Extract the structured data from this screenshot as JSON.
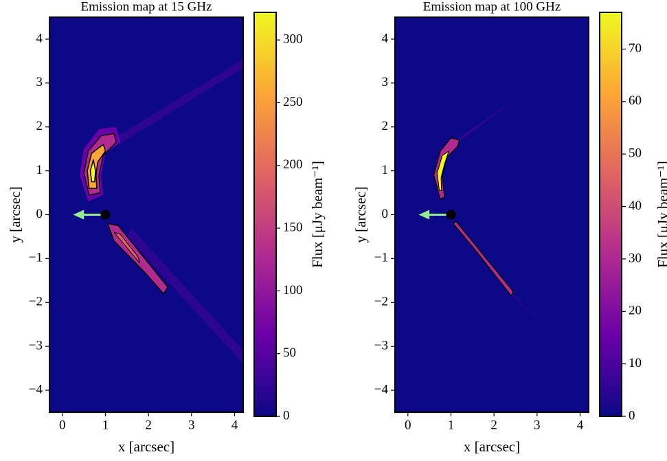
{
  "chart_data": [
    {
      "type": "heatmap",
      "title": "Emission map at 15 GHz",
      "xlabel": "x [arcsec]",
      "ylabel": "y [arcsec]",
      "xlim": [
        -0.3,
        4.2
      ],
      "ylim": [
        -4.5,
        4.5
      ],
      "xticks": [
        0,
        1,
        2,
        3,
        4
      ],
      "yticks": [
        {
          "value": -4,
          "label": "−4"
        },
        {
          "value": -3,
          "label": "−3"
        },
        {
          "value": -2,
          "label": "−2"
        },
        {
          "value": -1,
          "label": "−1"
        },
        0,
        1,
        2,
        3,
        4
      ],
      "colorbar": {
        "label": "Flux [μJy beam⁻¹]",
        "lim": [
          0,
          322
        ],
        "ticks": [
          0,
          50,
          100,
          150,
          200,
          250,
          300
        ]
      },
      "colormap": [
        "#0d0887",
        "#6a00a8",
        "#b12a90",
        "#e16462",
        "#fca636",
        "#f0f921"
      ]
    },
    {
      "type": "heatmap",
      "title": "Emission map at 100 GHz",
      "xlabel": "x [arcsec]",
      "ylabel": "y [arcsec]",
      "xlim": [
        -0.3,
        4.2
      ],
      "ylim": [
        -4.5,
        4.5
      ],
      "xticks": [
        0,
        1,
        2,
        3,
        4
      ],
      "yticks": [
        {
          "value": -4,
          "label": "−4"
        },
        {
          "value": -3,
          "label": "−3"
        },
        {
          "value": -2,
          "label": "−2"
        },
        {
          "value": -1,
          "label": "−1"
        },
        0,
        1,
        2,
        3,
        4
      ],
      "colorbar": {
        "label": "Flux [μJy beam⁻¹]",
        "lim": [
          0,
          77
        ],
        "ticks": [
          0,
          10,
          20,
          30,
          40,
          50,
          60,
          70
        ]
      },
      "colormap": [
        "#0d0887",
        "#6a00a8",
        "#b12a90",
        "#e16462",
        "#fca636",
        "#f0f921"
      ]
    }
  ]
}
